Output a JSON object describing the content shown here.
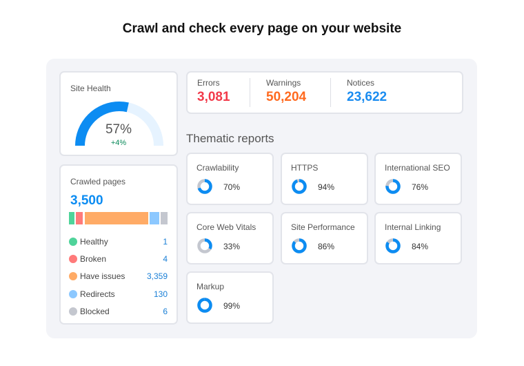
{
  "title": "Crawl and check every page on your website",
  "site_health": {
    "label": "Site Health",
    "value": 57,
    "value_text": "57%",
    "delta": "+4%"
  },
  "crawled": {
    "label": "Crawled pages",
    "total": "3,500",
    "items": [
      {
        "label": "Healthy",
        "value": "1",
        "color": "#4fd39a"
      },
      {
        "label": "Broken",
        "value": "4",
        "color": "#ff7a7a"
      },
      {
        "label": "Have issues",
        "value": "3,359",
        "color": "#ffab66"
      },
      {
        "label": "Redirects",
        "value": "130",
        "color": "#8cc8ff"
      },
      {
        "label": "Blocked",
        "value": "6",
        "color": "#c4c7cf"
      }
    ]
  },
  "issues": [
    {
      "label": "Errors",
      "value": "3,081",
      "color": "#f23a4a"
    },
    {
      "label": "Warnings",
      "value": "50,204",
      "color": "#ff6a1f"
    },
    {
      "label": "Notices",
      "value": "23,622",
      "color": "#1a8cf0"
    }
  ],
  "thematic": {
    "heading": "Thematic reports",
    "reports": [
      {
        "label": "Crawlability",
        "value": 70,
        "text": "70%"
      },
      {
        "label": "HTTPS",
        "value": 94,
        "text": "94%"
      },
      {
        "label": "International SEO",
        "value": 76,
        "text": "76%"
      },
      {
        "label": "Core Web Vitals",
        "value": 33,
        "text": "33%"
      },
      {
        "label": "Site Performance",
        "value": 86,
        "text": "86%"
      },
      {
        "label": "Internal Linking",
        "value": 84,
        "text": "84%"
      },
      {
        "label": "Markup",
        "value": 99,
        "text": "99%"
      }
    ]
  }
}
